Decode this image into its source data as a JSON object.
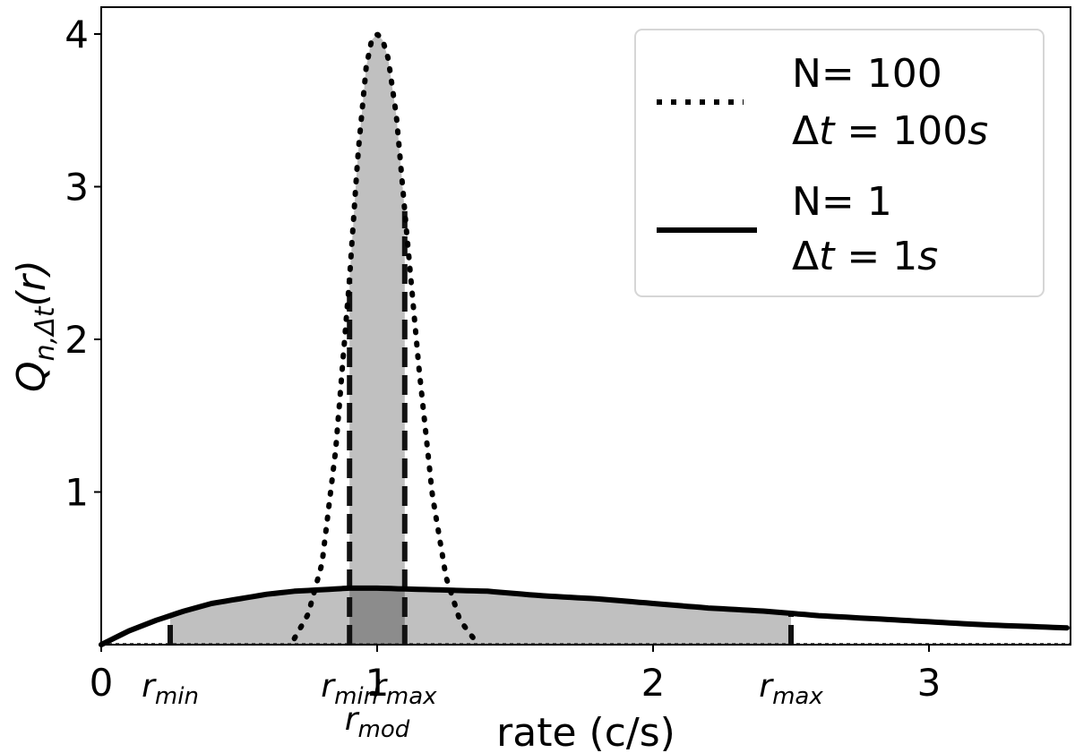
{
  "chart_data": {
    "type": "line",
    "xlabel": "rate (c/s)",
    "ylabel": {
      "base": "Q",
      "sub": "n,Δt",
      "arg": "(r)"
    },
    "xlim": [
      0,
      3.5
    ],
    "ylim": [
      0,
      4.2
    ],
    "x_ticks": [
      {
        "value": 0,
        "label": "0"
      },
      {
        "value": 1,
        "label": "1"
      },
      {
        "value": 2,
        "label": "2"
      },
      {
        "value": 3,
        "label": "3"
      }
    ],
    "y_ticks": [
      {
        "value": 1,
        "label": "1"
      },
      {
        "value": 2,
        "label": "2"
      },
      {
        "value": 3,
        "label": "3"
      },
      {
        "value": 4,
        "label": "4"
      }
    ],
    "grid": false,
    "legend_position": "top-right",
    "series": [
      {
        "name": "N= 100 Δt = 100s",
        "legend_line1": "N= 100",
        "legend_line2_base": "Δ",
        "legend_line2_math": "t",
        "legend_line2_rest": " = 100",
        "legend_line2_unit": "s",
        "style": "dotted",
        "color": "#000000",
        "n": 100,
        "dt": 100,
        "x": [
          0.7,
          0.75,
          0.8,
          0.85,
          0.9,
          0.93,
          0.96,
          0.98,
          1.0,
          1.02,
          1.04,
          1.07,
          1.1,
          1.15,
          1.2,
          1.25,
          1.3,
          1.35
        ],
        "y": [
          0.04,
          0.2,
          0.53,
          1.28,
          2.4,
          3.2,
          3.78,
          3.96,
          4.0,
          3.96,
          3.84,
          3.46,
          2.84,
          1.84,
          0.98,
          0.44,
          0.16,
          0.04
        ],
        "shade_interval": [
          0.9,
          1.1
        ],
        "shade_color": "#c0c0c0"
      },
      {
        "name": "N= 1 Δt = 1s",
        "legend_line1": "N= 1",
        "legend_line2_base": "Δ",
        "legend_line2_math": "t",
        "legend_line2_rest": " = 1",
        "legend_line2_unit": "s",
        "style": "solid",
        "color": "#000000",
        "n": 1,
        "dt": 1,
        "x": [
          0,
          0.1,
          0.2,
          0.3,
          0.4,
          0.5,
          0.6,
          0.7,
          0.8,
          0.9,
          1.0,
          1.2,
          1.4,
          1.6,
          1.8,
          2.0,
          2.2,
          2.4,
          2.6,
          2.8,
          3.0,
          3.2,
          3.5
        ],
        "y": [
          0,
          0.09,
          0.16,
          0.22,
          0.27,
          0.3,
          0.33,
          0.35,
          0.36,
          0.37,
          0.37,
          0.36,
          0.35,
          0.32,
          0.3,
          0.27,
          0.24,
          0.22,
          0.19,
          0.17,
          0.15,
          0.13,
          0.11
        ],
        "shade_interval": [
          0.25,
          2.5
        ],
        "shade_color": "#c0c0c0"
      }
    ],
    "overlap_color": "#8c8c8c",
    "annotations": [
      {
        "name": "rmin-wide",
        "base": "r",
        "sub": "min",
        "x": 0.25,
        "row": 1
      },
      {
        "name": "rmin-narrow",
        "base": "r",
        "sub": "min",
        "x": 0.9,
        "row": 1
      },
      {
        "name": "rmax-narrow",
        "base": "r",
        "sub": "max",
        "x": 1.1,
        "row": 1
      },
      {
        "name": "rmod",
        "base": "r",
        "sub": "mod",
        "x": 1.0,
        "row": 2
      },
      {
        "name": "rmax-wide",
        "base": "r",
        "sub": "max",
        "x": 2.5,
        "row": 1
      }
    ]
  }
}
